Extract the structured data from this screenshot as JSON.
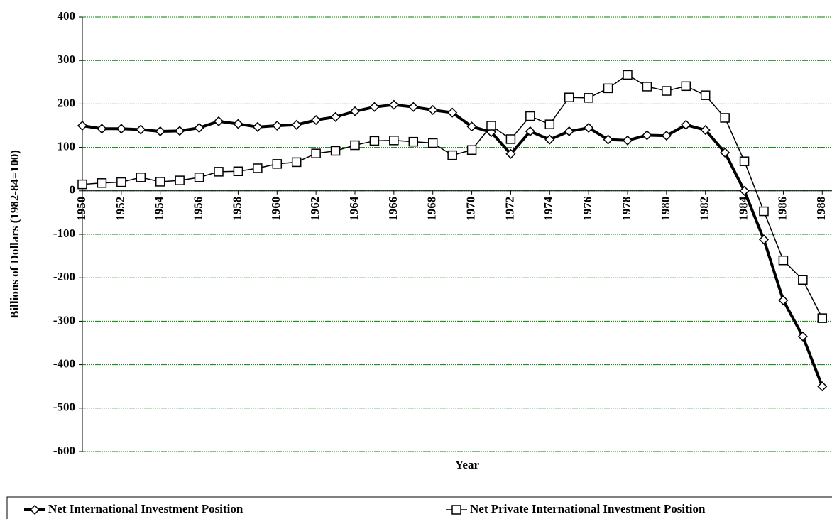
{
  "chart_data": {
    "type": "line",
    "x_label": "Year",
    "y_label": "Billions of Dollars (1982-84=100)",
    "x": [
      1950,
      1951,
      1952,
      1953,
      1954,
      1955,
      1956,
      1957,
      1958,
      1959,
      1960,
      1961,
      1962,
      1963,
      1964,
      1965,
      1966,
      1967,
      1968,
      1969,
      1970,
      1971,
      1972,
      1973,
      1974,
      1975,
      1976,
      1977,
      1978,
      1979,
      1980,
      1981,
      1982,
      1983,
      1984,
      1985,
      1986,
      1987,
      1988
    ],
    "series": [
      {
        "name": "Net International Investment Position",
        "color": "#000000",
        "marker": "diamond",
        "values": [
          150,
          143,
          143,
          141,
          137,
          138,
          145,
          160,
          154,
          147,
          150,
          152,
          163,
          170,
          183,
          193,
          198,
          193,
          186,
          180,
          148,
          135,
          85,
          137,
          118,
          137,
          145,
          118,
          116,
          128,
          127,
          152,
          140,
          88,
          0,
          -112,
          -252,
          -335,
          -450
        ]
      },
      {
        "name": "Net Private International Investment Position",
        "color": "#000000",
        "marker": "square",
        "values": [
          15,
          18,
          20,
          31,
          21,
          24,
          31,
          44,
          45,
          52,
          62,
          66,
          86,
          92,
          105,
          115,
          116,
          113,
          110,
          82,
          94,
          150,
          119,
          172,
          153,
          215,
          214,
          236,
          267,
          240,
          230,
          241,
          220,
          168,
          68,
          -47,
          -160,
          -205,
          -293
        ]
      }
    ],
    "xlim": [
      1950,
      1988.5
    ],
    "xticks": [
      1950,
      1952,
      1954,
      1956,
      1958,
      1960,
      1962,
      1964,
      1966,
      1968,
      1970,
      1972,
      1974,
      1976,
      1978,
      1980,
      1982,
      1984,
      1986,
      1988
    ],
    "ylim": [
      -600,
      400
    ],
    "yticks": [
      -600,
      -500,
      -400,
      -300,
      -200,
      -100,
      0,
      100,
      200,
      300,
      400
    ],
    "grid": true,
    "grid_color": "#008000",
    "legend": "bottom"
  }
}
